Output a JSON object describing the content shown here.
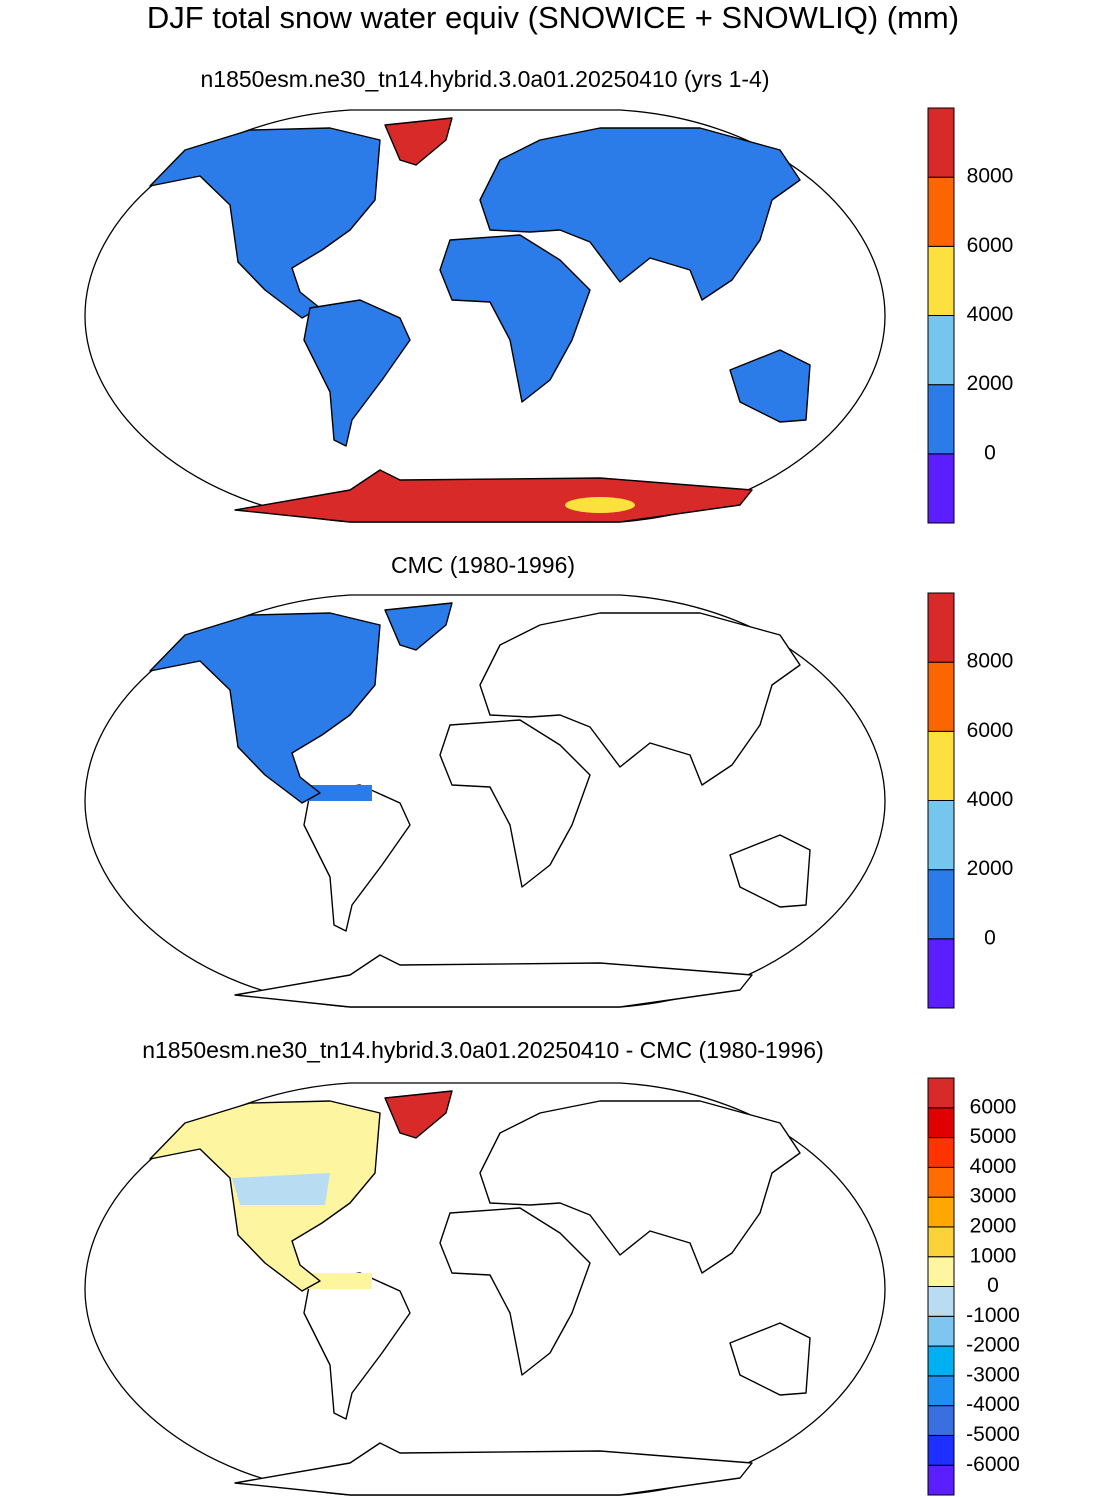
{
  "title": "DJF total snow water equiv (SNOWICE + SNOWLIQ) (mm)",
  "panels": [
    {
      "title": "n1850esm.ne30_tn14.hybrid.3.0a01.20250410 (yrs 1-4)",
      "colorbar": {
        "colors": [
          "#5a1eff",
          "#2b7be8",
          "#74c6ee",
          "#fce03d",
          "#fb6600",
          "#d82a28"
        ],
        "ticks": [
          0,
          2000,
          4000,
          6000,
          8000
        ]
      }
    },
    {
      "title": "CMC (1980-1996)",
      "colorbar": {
        "colors": [
          "#5a1eff",
          "#2b7be8",
          "#74c6ee",
          "#fce03d",
          "#fb6600",
          "#d82a28"
        ],
        "ticks": [
          0,
          2000,
          4000,
          6000,
          8000
        ]
      }
    },
    {
      "title": "n1850esm.ne30_tn14.hybrid.3.0a01.20250410 - CMC (1980-1996)",
      "colorbar": {
        "colors": [
          "#5a1eff",
          "#1e30ff",
          "#3a6fe0",
          "#1e8ff0",
          "#00b0f0",
          "#7ec5ef",
          "#b8ddf2",
          "#fdf5a0",
          "#fcd23a",
          "#ffa800",
          "#ff6d00",
          "#ff3300",
          "#e00000",
          "#d82a28"
        ],
        "ticks": [
          -6000,
          -5000,
          -4000,
          -3000,
          -2000,
          -1000,
          0,
          1000,
          2000,
          3000,
          4000,
          5000,
          6000
        ]
      }
    }
  ]
}
